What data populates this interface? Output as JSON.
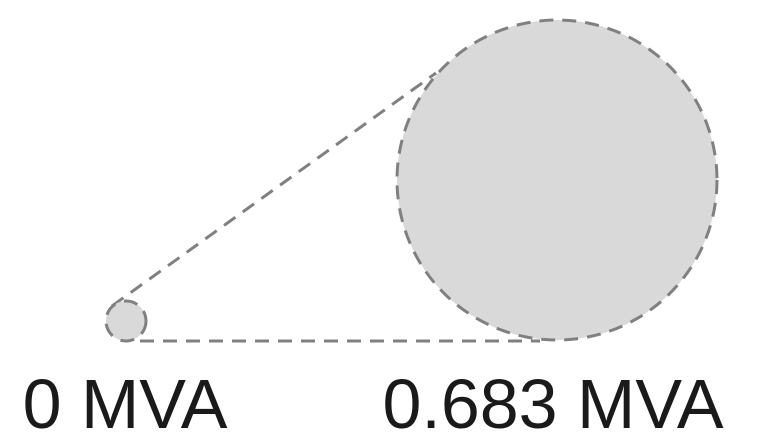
{
  "legend": {
    "items": [
      {
        "label": "0 MVA"
      },
      {
        "label": "0.683 MVA"
      }
    ]
  }
}
